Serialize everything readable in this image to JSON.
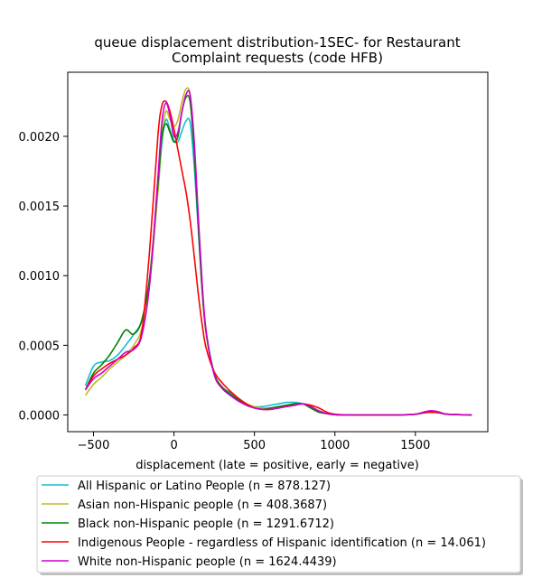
{
  "chart_data": {
    "type": "line",
    "title_lines": [
      "queue displacement distribution-1SEC-  for Restaurant",
      "Complaint  requests (code HFB)"
    ],
    "xlabel": "displacement (late = positive, early = negative)",
    "ylabel": "",
    "xlim": [
      -660,
      1950
    ],
    "ylim": [
      -0.00012,
      0.00246
    ],
    "xticks": [
      -500,
      0,
      500,
      1000,
      1500
    ],
    "xtick_labels": [
      "−500",
      "0",
      "500",
      "1000",
      "1500"
    ],
    "yticks": [
      0.0,
      0.0005,
      0.001,
      0.0015,
      0.002
    ],
    "ytick_labels": [
      "0.0000",
      "0.0005",
      "0.0010",
      "0.0015",
      "0.0020"
    ],
    "grid": false,
    "legend_position": "below",
    "series": [
      {
        "name": "All Hispanic or Latino People (n = 878.127)",
        "color": "#17becf",
        "x": [
          -550,
          -500,
          -450,
          -400,
          -350,
          -300,
          -250,
          -200,
          -150,
          -100,
          -75,
          -50,
          -25,
          0,
          25,
          50,
          75,
          100,
          125,
          150,
          175,
          200,
          250,
          300,
          350,
          400,
          450,
          500,
          550,
          600,
          650,
          700,
          750,
          800,
          850,
          900,
          950,
          1000,
          1100,
          1200,
          1300,
          1400,
          1500,
          1550,
          1600,
          1650,
          1700,
          1850
        ],
        "y": [
          0.00021,
          0.00035,
          0.00038,
          0.00039,
          0.00043,
          0.0005,
          0.00058,
          0.00068,
          0.00098,
          0.0016,
          0.00195,
          0.00212,
          0.00205,
          0.00197,
          0.00196,
          0.00204,
          0.00211,
          0.0021,
          0.0018,
          0.00135,
          0.0009,
          0.0006,
          0.0003,
          0.0002,
          0.00016,
          0.00012,
          8e-05,
          6e-05,
          6e-05,
          7e-05,
          8e-05,
          9e-05,
          9e-05,
          8e-05,
          5e-05,
          2e-05,
          1e-05,
          2e-06,
          0.0,
          0.0,
          0.0,
          0.0,
          5e-06,
          1.5e-05,
          2e-05,
          1.5e-05,
          5e-06,
          0.0
        ]
      },
      {
        "name": "Asian non-Hispanic people (n = 408.3687)",
        "color": "#bcbd22",
        "x": [
          -550,
          -500,
          -450,
          -400,
          -350,
          -300,
          -250,
          -200,
          -150,
          -100,
          -75,
          -50,
          -25,
          0,
          25,
          50,
          75,
          100,
          125,
          150,
          175,
          200,
          250,
          300,
          350,
          400,
          450,
          500,
          550,
          600,
          650,
          700,
          750,
          800,
          850,
          900,
          950,
          1000,
          1100,
          1200,
          1300,
          1400,
          1500,
          1550,
          1600,
          1650,
          1700,
          1850
        ],
        "y": [
          0.00014,
          0.00022,
          0.00027,
          0.00033,
          0.00038,
          0.00043,
          0.0005,
          0.00062,
          0.00095,
          0.0016,
          0.002,
          0.00218,
          0.00212,
          0.00207,
          0.00212,
          0.00225,
          0.00234,
          0.0023,
          0.00195,
          0.0014,
          0.0009,
          0.00058,
          0.00029,
          0.00019,
          0.00015,
          0.00011,
          8e-05,
          6e-05,
          5e-05,
          5e-05,
          6e-05,
          7e-05,
          8e-05,
          8e-05,
          6e-05,
          3e-05,
          1e-05,
          2e-06,
          0.0,
          0.0,
          0.0,
          0.0,
          5e-06,
          1.5e-05,
          2.5e-05,
          1.5e-05,
          5e-06,
          0.0
        ]
      },
      {
        "name": "Black non-Hispanic people (n = 1291.6712)",
        "color": "#008000",
        "x": [
          -550,
          -500,
          -450,
          -400,
          -350,
          -300,
          -250,
          -200,
          -150,
          -100,
          -75,
          -50,
          -25,
          0,
          25,
          50,
          75,
          100,
          125,
          150,
          175,
          200,
          250,
          300,
          350,
          400,
          450,
          500,
          550,
          600,
          650,
          700,
          750,
          800,
          850,
          900,
          950,
          1000,
          1100,
          1200,
          1300,
          1400,
          1500,
          1550,
          1600,
          1650,
          1700,
          1850
        ],
        "y": [
          0.00018,
          0.0003,
          0.00036,
          0.00043,
          0.00052,
          0.00061,
          0.00058,
          0.00068,
          0.001,
          0.00165,
          0.002,
          0.00209,
          0.00203,
          0.00196,
          0.002,
          0.00218,
          0.00228,
          0.00225,
          0.0019,
          0.00138,
          0.0009,
          0.00059,
          0.0003,
          0.0002,
          0.00015,
          0.00011,
          7e-05,
          5e-05,
          4e-05,
          5e-05,
          6e-05,
          7e-05,
          8e-05,
          8e-05,
          5e-05,
          2e-05,
          1e-05,
          2e-06,
          0.0,
          0.0,
          0.0,
          0.0,
          5e-06,
          1.5e-05,
          2e-05,
          1.5e-05,
          5e-06,
          0.0
        ]
      },
      {
        "name": "Indigenous People - regardless of Hispanic identification (n = 14.061)",
        "color": "#ff0000",
        "x": [
          -550,
          -500,
          -450,
          -400,
          -350,
          -300,
          -250,
          -200,
          -150,
          -100,
          -75,
          -50,
          -25,
          0,
          25,
          50,
          75,
          100,
          125,
          150,
          175,
          200,
          250,
          300,
          350,
          400,
          450,
          500,
          550,
          600,
          650,
          700,
          750,
          800,
          850,
          900,
          950,
          1000,
          1100,
          1200,
          1300,
          1400,
          1500,
          1550,
          1600,
          1650,
          1700,
          1850
        ],
        "y": [
          0.00018,
          0.00028,
          0.00033,
          0.00037,
          0.0004,
          0.00043,
          0.00048,
          0.0006,
          0.0012,
          0.002,
          0.00222,
          0.00225,
          0.00218,
          0.00205,
          0.0019,
          0.00175,
          0.0016,
          0.0014,
          0.00115,
          0.00088,
          0.00065,
          0.00048,
          0.00031,
          0.00023,
          0.00017,
          0.00012,
          8e-05,
          5e-05,
          4e-05,
          4e-05,
          5e-05,
          6e-05,
          7e-05,
          8e-05,
          7e-05,
          5e-05,
          2e-05,
          5e-06,
          0.0,
          0.0,
          0.0,
          0.0,
          5e-06,
          1.5e-05,
          2e-05,
          1.5e-05,
          5e-06,
          0.0
        ]
      },
      {
        "name": "White non-Hispanic people (n = 1624.4439)",
        "color": "#cc00cc",
        "x": [
          -550,
          -500,
          -450,
          -400,
          -350,
          -300,
          -250,
          -200,
          -150,
          -100,
          -75,
          -50,
          -25,
          0,
          25,
          50,
          75,
          100,
          125,
          150,
          175,
          200,
          250,
          300,
          350,
          400,
          450,
          500,
          550,
          600,
          650,
          700,
          750,
          800,
          850,
          900,
          950,
          1000,
          1100,
          1200,
          1300,
          1400,
          1500,
          1550,
          1600,
          1650,
          1700,
          1850
        ],
        "y": [
          0.00018,
          0.00026,
          0.0003,
          0.00035,
          0.0004,
          0.00045,
          0.00047,
          0.00057,
          0.00095,
          0.0017,
          0.0021,
          0.00224,
          0.00215,
          0.002,
          0.00203,
          0.00218,
          0.0023,
          0.0023,
          0.00198,
          0.00145,
          0.00095,
          0.0006,
          0.00029,
          0.00019,
          0.00014,
          0.0001,
          7e-05,
          5e-05,
          4e-05,
          4e-05,
          5e-05,
          6e-05,
          7e-05,
          8e-05,
          6e-05,
          3e-05,
          1e-05,
          2e-06,
          0.0,
          0.0,
          0.0,
          0.0,
          5e-06,
          2e-05,
          3e-05,
          2e-05,
          5e-06,
          0.0
        ]
      }
    ]
  }
}
